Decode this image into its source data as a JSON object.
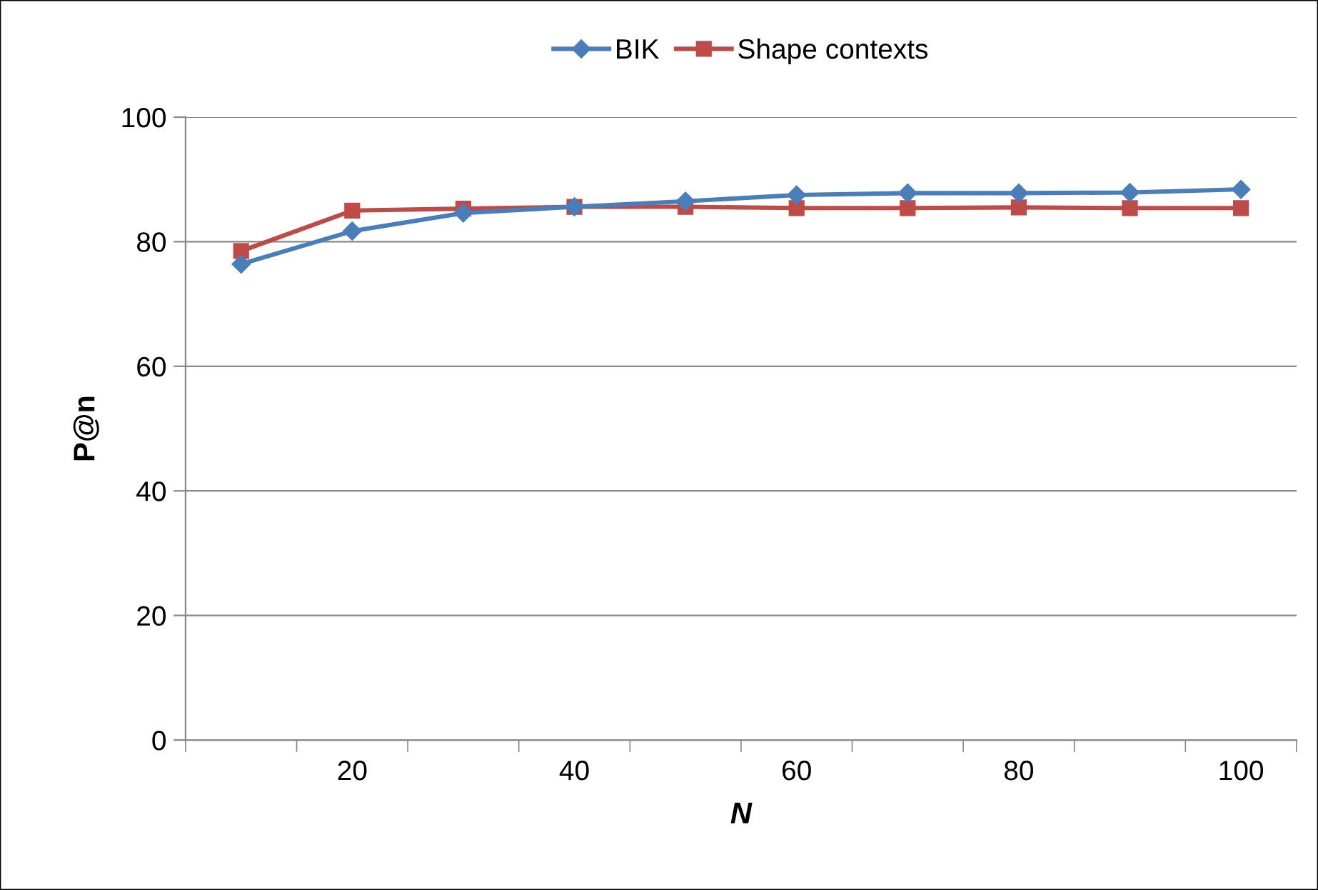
{
  "chart_data": {
    "type": "line",
    "xlabel": "N",
    "ylabel": "P@n",
    "categories": [
      null,
      "20",
      null,
      "40",
      null,
      "60",
      null,
      "80",
      null,
      "100"
    ],
    "series": [
      {
        "name": "BIK",
        "color": "#4a7ebb",
        "marker": "diamond",
        "values": [
          76.4,
          81.7,
          84.6,
          85.6,
          86.5,
          87.5,
          87.8,
          87.8,
          87.9,
          88.4
        ]
      },
      {
        "name": "Shape contexts",
        "color": "#be4b48",
        "marker": "square",
        "values": [
          78.5,
          85.0,
          85.3,
          85.6,
          85.6,
          85.4,
          85.4,
          85.5,
          85.4,
          85.4
        ]
      }
    ],
    "ylim": [
      0,
      100
    ],
    "yticks": [
      0,
      20,
      40,
      60,
      80,
      100
    ],
    "grid": "y",
    "legend": "top",
    "line_style": "solid"
  }
}
